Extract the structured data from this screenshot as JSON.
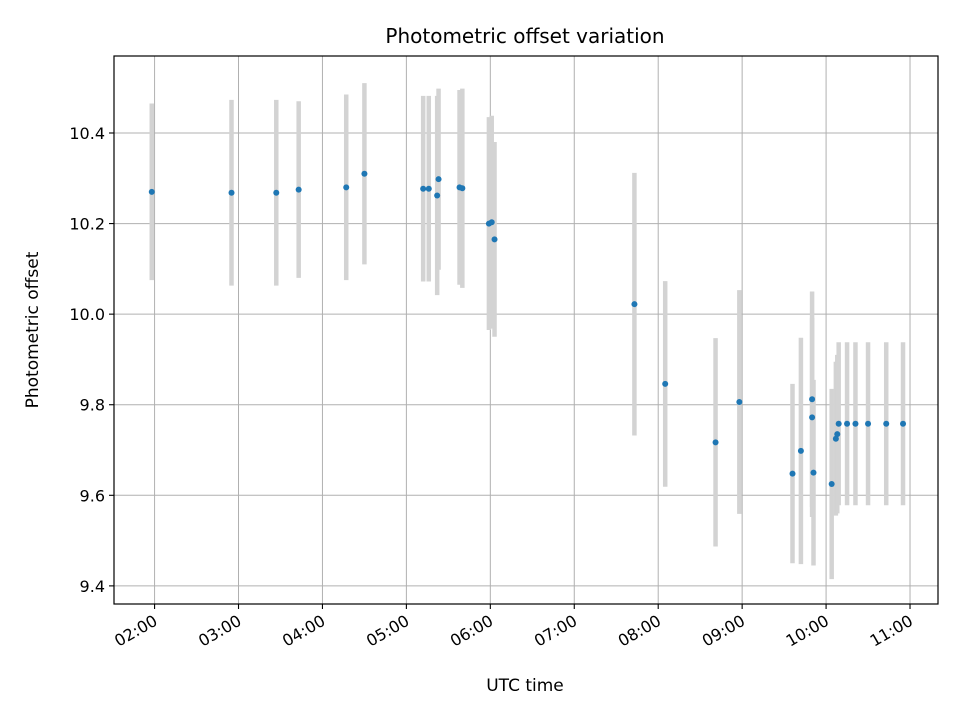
{
  "chart_data": {
    "type": "scatter",
    "title": "Photometric offset variation",
    "xlabel": "UTC time",
    "ylabel": "Photometric offset",
    "x_axis": "time",
    "xlim": [
      "01:31",
      "11:20"
    ],
    "ylim": [
      9.36,
      10.57
    ],
    "x_ticks": [
      "02:00",
      "03:00",
      "04:00",
      "05:00",
      "06:00",
      "07:00",
      "08:00",
      "09:00",
      "10:00",
      "11:00"
    ],
    "y_ticks": [
      9.4,
      9.6,
      9.8,
      10.0,
      10.2,
      10.4
    ],
    "y_tick_labels": [
      "9.4",
      "9.6",
      "9.8",
      "10.0",
      "10.2",
      "10.4"
    ],
    "grid": true,
    "colors": {
      "point": "#1f77b4",
      "errorbar": "#d3d3d3",
      "grid": "#b0b0b0"
    },
    "series": [
      {
        "points": [
          {
            "x": "01:58",
            "y": 10.27,
            "err": 0.195
          },
          {
            "x": "02:55",
            "y": 10.268,
            "err": 0.205
          },
          {
            "x": "03:27",
            "y": 10.268,
            "err": 0.205
          },
          {
            "x": "03:43",
            "y": 10.275,
            "err": 0.195
          },
          {
            "x": "04:17",
            "y": 10.28,
            "err": 0.205
          },
          {
            "x": "04:30",
            "y": 10.31,
            "err": 0.2
          },
          {
            "x": "05:12",
            "y": 10.277,
            "err": 0.205
          },
          {
            "x": "05:16",
            "y": 10.277,
            "err": 0.205
          },
          {
            "x": "05:22",
            "y": 10.262,
            "err": 0.22
          },
          {
            "x": "05:23",
            "y": 10.298,
            "err": 0.2
          },
          {
            "x": "05:38",
            "y": 10.28,
            "err": 0.215
          },
          {
            "x": "05:40",
            "y": 10.278,
            "err": 0.22
          },
          {
            "x": "05:59",
            "y": 10.2,
            "err": 0.235
          },
          {
            "x": "06:01",
            "y": 10.203,
            "err": 0.235
          },
          {
            "x": "06:03",
            "y": 10.165,
            "err": 0.215
          },
          {
            "x": "07:43",
            "y": 10.022,
            "err": 0.29
          },
          {
            "x": "08:05",
            "y": 9.846,
            "err": 0.227
          },
          {
            "x": "08:41",
            "y": 9.717,
            "err": 0.23
          },
          {
            "x": "08:58",
            "y": 9.806,
            "err": 0.247
          },
          {
            "x": "09:36",
            "y": 9.648,
            "err": 0.198
          },
          {
            "x": "09:42",
            "y": 9.698,
            "err": 0.25
          },
          {
            "x": "09:50",
            "y": 9.812,
            "err": 0.238
          },
          {
            "x": "09:50",
            "y": 9.772,
            "err": 0.22
          },
          {
            "x": "09:51",
            "y": 9.65,
            "err": 0.205
          },
          {
            "x": "10:04",
            "y": 9.625,
            "err": 0.21
          },
          {
            "x": "10:07",
            "y": 9.725,
            "err": 0.17
          },
          {
            "x": "10:08",
            "y": 9.735,
            "err": 0.175
          },
          {
            "x": "10:09",
            "y": 9.758,
            "err": 0.18
          },
          {
            "x": "10:15",
            "y": 9.758,
            "err": 0.18
          },
          {
            "x": "10:21",
            "y": 9.758,
            "err": 0.18
          },
          {
            "x": "10:30",
            "y": 9.758,
            "err": 0.18
          },
          {
            "x": "10:43",
            "y": 9.758,
            "err": 0.18
          },
          {
            "x": "10:55",
            "y": 9.758,
            "err": 0.18
          }
        ]
      }
    ]
  }
}
